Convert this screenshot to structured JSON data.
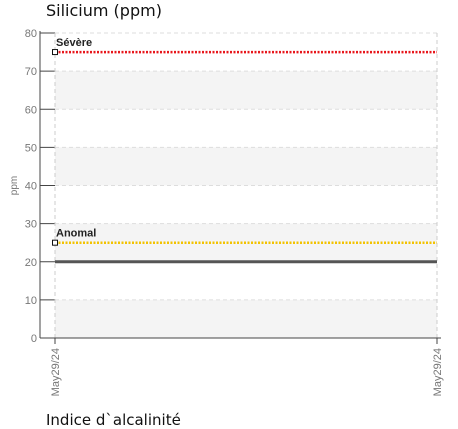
{
  "chart_data": {
    "type": "line",
    "title": "Silicium (ppm)",
    "ylabel": "ppm",
    "xlabel": "",
    "ylim": [
      0,
      80
    ],
    "yticks": [
      0,
      10,
      20,
      30,
      40,
      50,
      60,
      70,
      80
    ],
    "x": [
      "May29/24",
      "May29/24"
    ],
    "series": [
      {
        "values": [
          20,
          20
        ],
        "color": "#555555"
      }
    ],
    "thresholds": [
      {
        "name": "Sévère",
        "value": 75,
        "color": "#e8161b"
      },
      {
        "name": "Anomal",
        "value": 25,
        "color": "#f2c200"
      }
    ],
    "grid": true
  },
  "next_chart_title": "Indice d`alcalinité"
}
